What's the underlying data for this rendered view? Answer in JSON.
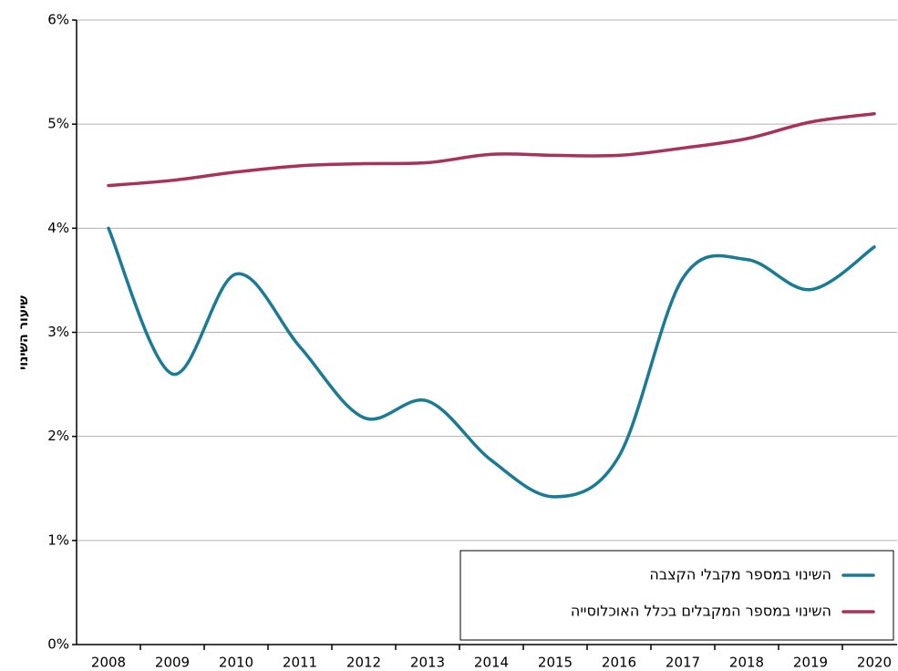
{
  "chart_data": {
    "type": "line",
    "y_label": "שיעור השינוי",
    "categories": [
      "2008",
      "2009",
      "2010",
      "2011",
      "2012",
      "2013",
      "2014",
      "2015",
      "2016",
      "2017",
      "2018",
      "2019",
      "2020"
    ],
    "series": [
      {
        "name": "השינוי במספר מקבלי הקצבה",
        "color": "#1a7b94",
        "values": [
          4.0,
          2.6,
          3.56,
          2.86,
          2.18,
          2.34,
          1.77,
          1.42,
          1.81,
          3.52,
          3.7,
          3.41,
          3.82
        ]
      },
      {
        "name": "השינוי במספר המקבלים בכלל האוכלוסייה",
        "color": "#a8325a",
        "values": [
          4.41,
          4.46,
          4.54,
          4.6,
          4.62,
          4.63,
          4.71,
          4.7,
          4.7,
          4.77,
          4.86,
          5.02,
          5.1
        ]
      }
    ],
    "ylim": [
      0,
      6
    ],
    "yticks": [
      {
        "value": 0,
        "label": "0%"
      },
      {
        "value": 1,
        "label": "1%"
      },
      {
        "value": 2,
        "label": "2%"
      },
      {
        "value": 3,
        "label": "3%"
      },
      {
        "value": 4,
        "label": "4%"
      },
      {
        "value": 5,
        "label": "5%"
      },
      {
        "value": 6,
        "label": "6%"
      }
    ],
    "grid": true,
    "legend": "lower right"
  }
}
